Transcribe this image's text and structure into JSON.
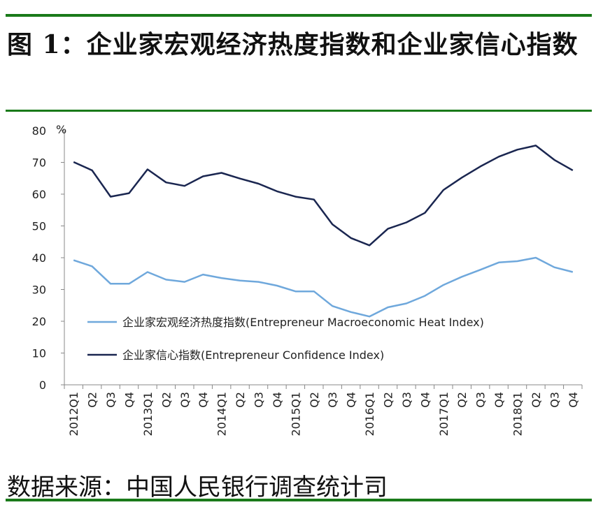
{
  "title": "图 1：企业家宏观经济热度指数和企业家信心指数",
  "source": "数据来源：中国人民银行调查统计司",
  "chart_data": {
    "type": "line",
    "unit": "%",
    "categories": [
      "2012Q1",
      "Q2",
      "Q3",
      "Q4",
      "2013Q1",
      "Q2",
      "Q3",
      "Q4",
      "2014Q1",
      "Q2",
      "Q3",
      "Q4",
      "2015Q1",
      "Q2",
      "Q3",
      "Q4",
      "2016Q1",
      "Q2",
      "Q3",
      "Q4",
      "2017Q1",
      "Q2",
      "Q3",
      "Q4",
      "2018Q1",
      "Q2",
      "Q3",
      "Q4"
    ],
    "ylim": [
      0,
      80
    ],
    "yticks": [
      0,
      10,
      20,
      30,
      40,
      50,
      60,
      70,
      80
    ],
    "series": [
      {
        "name": "企业家宏观经济热度指数(Entrepreneur Macroeconomic Heat Index)",
        "color": "#6fa8dc",
        "values": [
          39.2,
          37.3,
          31.8,
          31.8,
          35.5,
          33.1,
          32.4,
          34.7,
          33.6,
          32.8,
          32.4,
          31.2,
          29.4,
          29.4,
          24.8,
          22.9,
          21.5,
          24.4,
          25.6,
          28.0,
          31.4,
          34.0,
          36.2,
          38.5,
          38.9,
          40.0,
          37.0,
          35.5
        ]
      },
      {
        "name": "企业家信心指数(Entrepreneur Confidence Index)",
        "color": "#1a2650",
        "values": [
          70.1,
          67.5,
          59.2,
          60.3,
          67.8,
          63.7,
          62.6,
          65.6,
          66.7,
          64.9,
          63.3,
          60.9,
          59.2,
          58.3,
          50.5,
          46.2,
          43.9,
          49.1,
          51.1,
          54.1,
          61.3,
          65.2,
          68.7,
          71.8,
          74.0,
          75.3,
          70.8,
          67.5
        ]
      }
    ],
    "legend_position": "center-bottom inside plot"
  }
}
